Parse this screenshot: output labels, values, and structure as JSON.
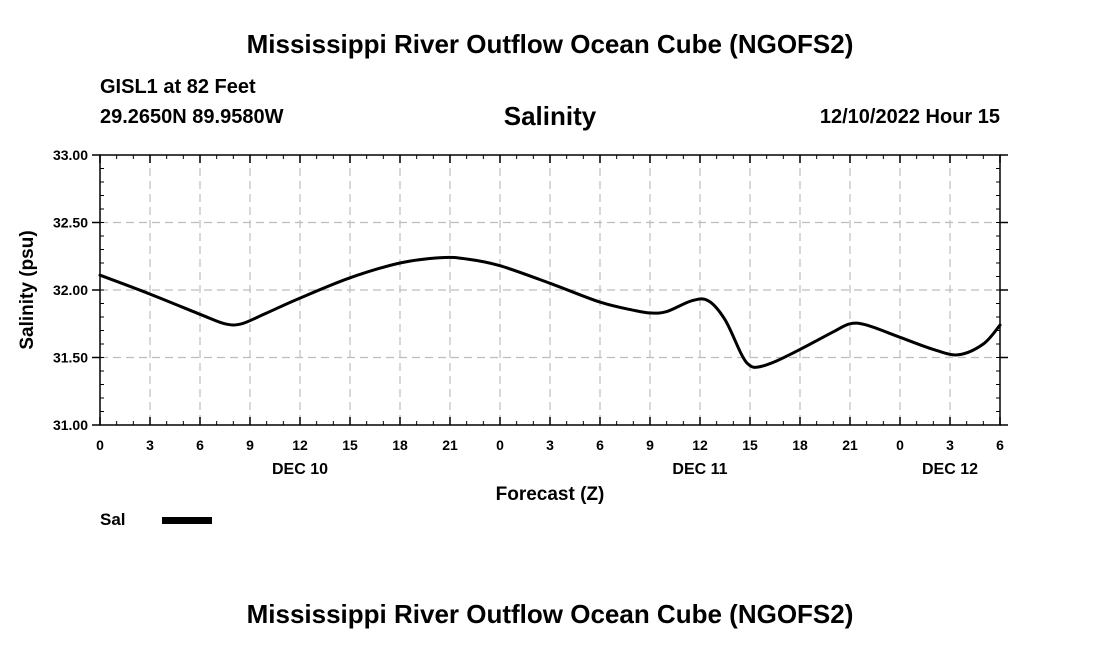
{
  "header": {
    "title": "Mississippi River Outflow Ocean Cube (NGOFS2)",
    "station": "GISL1 at 82 Feet",
    "latlon": "29.2650N  89.9580W",
    "variable": "Salinity",
    "datetime": "12/10/2022 Hour 15"
  },
  "footer": {
    "title": "Mississippi River Outflow Ocean Cube (NGOFS2)"
  },
  "legend": {
    "label": "Sal",
    "color": "#000000"
  },
  "chart_data": {
    "type": "line",
    "title": "Salinity",
    "xlabel": "Forecast (Z)",
    "ylabel": "Salinity (psu)",
    "xlim": [
      0,
      54
    ],
    "ylim": [
      31.0,
      33.0
    ],
    "grid": true,
    "legend_position": "bottom-left",
    "y_ticks": [
      "31.00",
      "31.50",
      "32.00",
      "32.50",
      "33.00"
    ],
    "x_ticks": [
      {
        "t": 0,
        "label": "0"
      },
      {
        "t": 3,
        "label": "3"
      },
      {
        "t": 6,
        "label": "6"
      },
      {
        "t": 9,
        "label": "9"
      },
      {
        "t": 12,
        "label": "12"
      },
      {
        "t": 15,
        "label": "15"
      },
      {
        "t": 18,
        "label": "18"
      },
      {
        "t": 21,
        "label": "21"
      },
      {
        "t": 24,
        "label": "0"
      },
      {
        "t": 27,
        "label": "3"
      },
      {
        "t": 30,
        "label": "6"
      },
      {
        "t": 33,
        "label": "9"
      },
      {
        "t": 36,
        "label": "12"
      },
      {
        "t": 39,
        "label": "15"
      },
      {
        "t": 42,
        "label": "18"
      },
      {
        "t": 45,
        "label": "21"
      },
      {
        "t": 48,
        "label": "0"
      },
      {
        "t": 51,
        "label": "3"
      },
      {
        "t": 54,
        "label": "6"
      }
    ],
    "day_labels": [
      {
        "t": 12,
        "label": "DEC 10"
      },
      {
        "t": 36,
        "label": "DEC 11"
      },
      {
        "t": 51,
        "label": "DEC 12"
      }
    ],
    "series": [
      {
        "name": "Sal",
        "color": "#000000",
        "x": [
          0,
          3,
          6,
          7.5,
          8.5,
          10,
          12,
          15,
          18,
          20.5,
          22,
          24,
          27,
          30,
          32,
          33,
          34,
          35.5,
          36.5,
          37.5,
          38.5,
          39,
          39.5,
          40.5,
          42,
          44,
          45,
          46,
          48,
          50,
          51.5,
          53,
          54
        ],
        "values": [
          32.11,
          31.97,
          31.82,
          31.75,
          31.75,
          31.83,
          31.94,
          32.09,
          32.2,
          32.24,
          32.23,
          32.18,
          32.05,
          31.91,
          31.85,
          31.83,
          31.84,
          31.92,
          31.92,
          31.78,
          31.52,
          31.44,
          31.43,
          31.47,
          31.56,
          31.69,
          31.75,
          31.74,
          31.65,
          31.56,
          31.52,
          31.6,
          31.74
        ]
      }
    ]
  }
}
